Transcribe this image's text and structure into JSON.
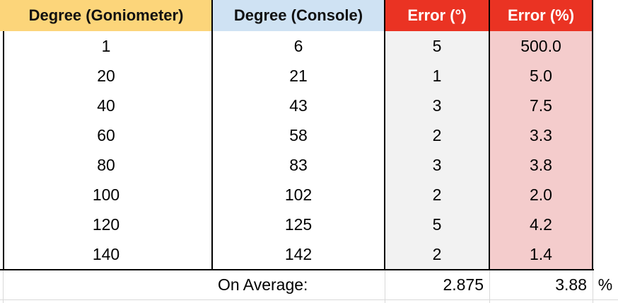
{
  "headers": [
    "Degree (Goniometer)",
    "Degree (Console)",
    "Error (°)",
    "Error (%)"
  ],
  "rows": [
    [
      "1",
      "6",
      "5",
      "500.0"
    ],
    [
      "20",
      "21",
      "1",
      "5.0"
    ],
    [
      "40",
      "43",
      "3",
      "7.5"
    ],
    [
      "60",
      "58",
      "2",
      "3.3"
    ],
    [
      "80",
      "83",
      "3",
      "3.8"
    ],
    [
      "100",
      "102",
      "2",
      "2.0"
    ],
    [
      "120",
      "125",
      "5",
      "4.2"
    ],
    [
      "140",
      "142",
      "2",
      "1.4"
    ]
  ],
  "average": {
    "label": "On Average:",
    "error_deg": "2.875",
    "error_pct": "3.88",
    "pct_unit": "%"
  },
  "colors": {
    "header_goniometer": "#fcd57a",
    "header_console": "#cfe2f3",
    "header_error": "#ea3323",
    "error_deg_column": "#f2f2f2",
    "error_pct_column": "#f4cccc"
  }
}
